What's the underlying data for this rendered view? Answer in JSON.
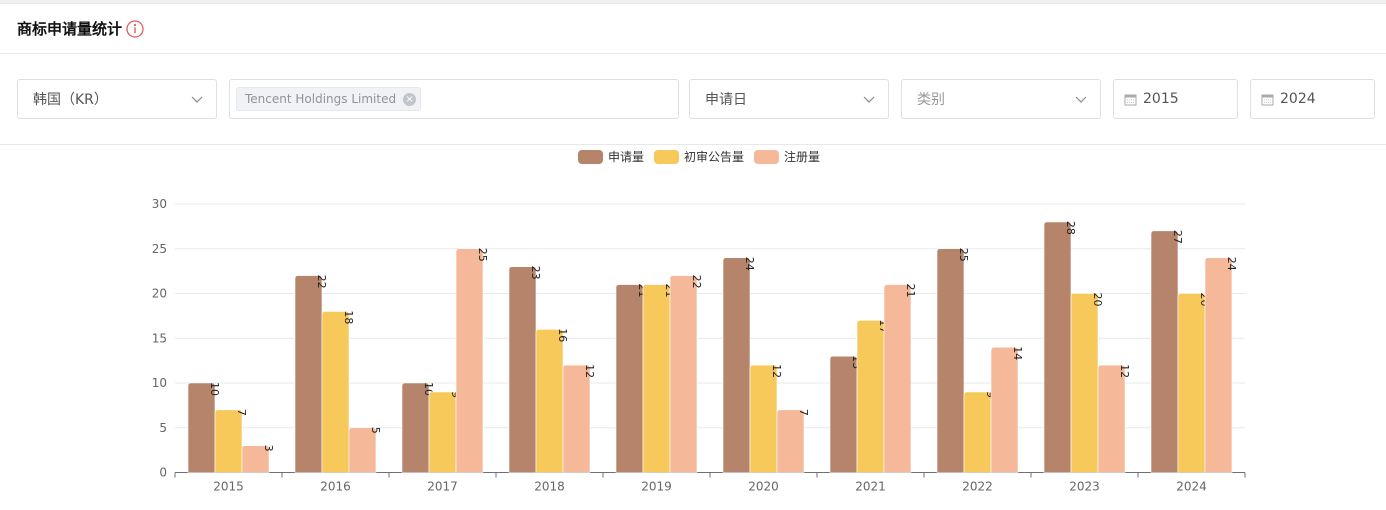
{
  "header": {
    "title": "商标申请量统计",
    "info_icon": "info-circle-icon",
    "info_color": "#e05c5c"
  },
  "filters": {
    "country": {
      "value": "韩国（KR）"
    },
    "applicant": {
      "tag": "Tencent Holdings Limited",
      "placeholder": ""
    },
    "date_type": {
      "value": "申请日"
    },
    "category": {
      "placeholder": "类别"
    },
    "start_year": {
      "value": "2015"
    },
    "end_year": {
      "value": "2024"
    }
  },
  "legend": [
    {
      "label": "申请量",
      "color": "#b5846b"
    },
    {
      "label": "初审公告量",
      "color": "#f7c85a"
    },
    {
      "label": "注册量",
      "color": "#f5b898"
    }
  ],
  "chart_data": {
    "type": "bar",
    "title": "商标申请量统计",
    "xlabel": "",
    "ylabel": "",
    "ylim": [
      0,
      30
    ],
    "yticks": [
      0,
      5,
      10,
      15,
      20,
      25,
      30
    ],
    "grid": true,
    "legend_position": "top",
    "categories": [
      "2015",
      "2016",
      "2017",
      "2018",
      "2019",
      "2020",
      "2021",
      "2022",
      "2023",
      "2024"
    ],
    "series": [
      {
        "name": "申请量",
        "color": "#b5846b",
        "values": [
          10,
          22,
          10,
          23,
          21,
          24,
          13,
          25,
          28,
          27
        ]
      },
      {
        "name": "初审公告量",
        "color": "#f7c85a",
        "values": [
          7,
          18,
          9,
          16,
          21,
          12,
          17,
          9,
          20,
          20
        ]
      },
      {
        "name": "注册量",
        "color": "#f5b898",
        "values": [
          3,
          5,
          25,
          12,
          22,
          7,
          21,
          14,
          12,
          24
        ]
      }
    ]
  }
}
